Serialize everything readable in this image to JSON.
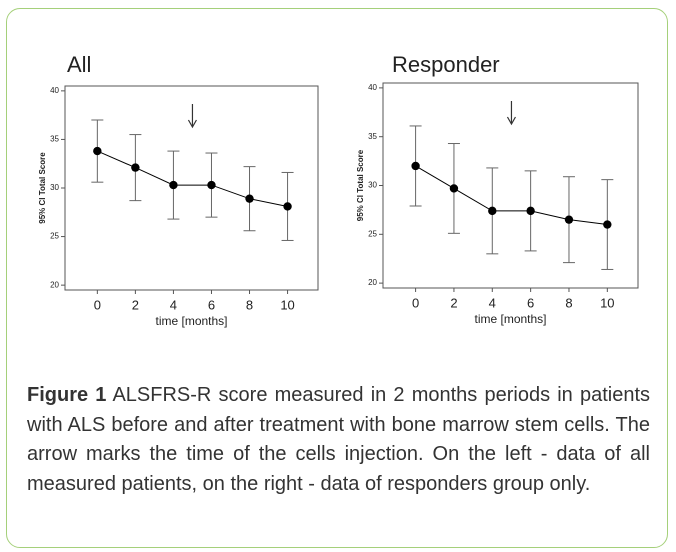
{
  "chart_data": [
    {
      "type": "line",
      "title": "All",
      "xlabel": "time [months]",
      "ylabel": "95% CI Total Score",
      "x": [
        0,
        2,
        4,
        6,
        8,
        10
      ],
      "values": [
        33.8,
        32.1,
        30.3,
        30.3,
        28.9,
        28.1
      ],
      "errors": [
        3.2,
        3.4,
        3.5,
        3.3,
        3.3,
        3.5
      ],
      "color": "#000000",
      "arrow_x": 5,
      "xlim": [
        -1.7,
        11.6
      ],
      "ylim": [
        19.5,
        40.5
      ],
      "xticks": [
        0,
        2,
        4,
        6,
        8,
        10
      ],
      "yticks": [
        20,
        25,
        30,
        35,
        40
      ]
    },
    {
      "type": "line",
      "title": "Responder",
      "xlabel": "time [months]",
      "ylabel": "95% CI Total Score",
      "x": [
        0,
        2,
        4,
        6,
        8,
        10
      ],
      "values": [
        32.0,
        29.7,
        27.4,
        27.4,
        26.5,
        26.0
      ],
      "errors": [
        4.1,
        4.6,
        4.4,
        4.1,
        4.4,
        4.6
      ],
      "color": "#000000",
      "arrow_x": 5,
      "xlim": [
        -1.7,
        11.6
      ],
      "ylim": [
        19.5,
        40.5
      ],
      "xticks": [
        0,
        2,
        4,
        6,
        8,
        10
      ],
      "yticks": [
        20,
        25,
        30,
        35,
        40
      ]
    }
  ],
  "caption": {
    "label": "Figure 1",
    "text": "ALSFRS-R score measured in 2 months periods in patients with ALS before and after treatment with bone marrow stem cells. The arrow marks the time of the cells injection. On the left - data of all measured patients, on the right - data of responders group only."
  }
}
